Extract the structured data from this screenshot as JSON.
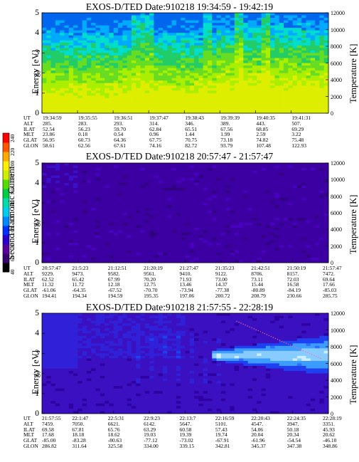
{
  "colorbar": {
    "label": "Second Harmonic Current",
    "ticks": [
      "40",
      "60",
      "80",
      "100",
      "120",
      "140",
      "160",
      "180",
      "200",
      "220",
      "240"
    ]
  },
  "chart_data": [
    {
      "type": "heatmap",
      "title": "EXOS-D/TED   Date:910218  19:34:59 - 19:42:19",
      "ylabel": "Energy [eV]",
      "y2label": "Temperature [K]",
      "ylim": [
        0,
        5
      ],
      "y2lim": [
        0,
        12000
      ],
      "yticks": [
        "0",
        "1",
        "2",
        "3",
        "4",
        "5"
      ],
      "y2ticks": [
        "0",
        "2000",
        "4000",
        "6000",
        "8000",
        "10000",
        "12000"
      ],
      "rows": [
        {
          "name": "UT",
          "values": [
            "19:34:59",
            "19:35:55",
            "19:36:51",
            "19:37:47",
            "19:38:43",
            "19:39:39",
            "19:40:35",
            "19:41:31"
          ]
        },
        {
          "name": "ALT",
          "values": [
            "285.",
            "283.",
            "293.",
            "314.",
            "346.",
            "389.",
            "443.",
            "507."
          ]
        },
        {
          "name": "ILAT",
          "values": [
            "52.54",
            "56.23",
            "59.70",
            "62.84",
            "65.51",
            "67.56",
            "68.85",
            "69.29"
          ]
        },
        {
          "name": "MLT",
          "values": [
            "23.86",
            "0.18",
            "0.54",
            "0.96",
            "1.44",
            "1.99",
            "2.59",
            "3.22"
          ]
        },
        {
          "name": "GLAT",
          "values": [
            "56.95",
            "60.73",
            "64.36",
            "67.75",
            "70.75",
            "73.18",
            "74.82",
            "75.48"
          ]
        },
        {
          "name": "GLON",
          "values": [
            "58.61",
            "62.56",
            "67.61",
            "74.16",
            "82.72",
            "93.79",
            "107.48",
            "122.93"
          ]
        }
      ]
    },
    {
      "type": "heatmap",
      "title": "EXOS-D/TED   Date:910218  20:57:47 - 21:57:47",
      "ylabel": "Energy [eV]",
      "y2label": "Temperature [K]",
      "ylim": [
        0,
        5
      ],
      "y2lim": [
        0,
        12000
      ],
      "yticks": [
        "0",
        "1",
        "2",
        "3",
        "4",
        "5"
      ],
      "y2ticks": [
        "0",
        "2000",
        "4000",
        "6000",
        "8000",
        "10000",
        "12000"
      ],
      "rows": [
        {
          "name": "UT",
          "values": [
            "20:57:47",
            "21:5:23",
            "21:12:51",
            "21:20:19",
            "21:27:47",
            "21:35:23",
            "21:42:51",
            "21:50:19",
            "21:57:47"
          ]
        },
        {
          "name": "ALT",
          "values": [
            "9229.",
            "9473.",
            "9582.",
            "9561.",
            "9410.",
            "9122.",
            "8706.",
            "8157.",
            "7472."
          ]
        },
        {
          "name": "ILAT",
          "values": [
            "62.52",
            "65.42",
            "67.99",
            "70.20",
            "71.93",
            "73.00",
            "73.11",
            "72.03",
            "69.64"
          ]
        },
        {
          "name": "MLT",
          "values": [
            "11.32",
            "11.72",
            "12.18",
            "12.75",
            "13.46",
            "14.37",
            "15.44",
            "16.58",
            "17.66"
          ]
        },
        {
          "name": "GLAT",
          "values": [
            "-61.06",
            "-64.35",
            "-67.52",
            "-70.70",
            "-73.94",
            "-77.38",
            "-80.89",
            "-84.19",
            "-85.03"
          ]
        },
        {
          "name": "GLON",
          "values": [
            "194.41",
            "194.34",
            "194.59",
            "195.35",
            "197.06",
            "200.72",
            "208.79",
            "230.66",
            "285.75"
          ]
        }
      ]
    },
    {
      "type": "heatmap",
      "title": "EXOS-D/TED   Date:910218  21:57:55 - 22:28:19",
      "ylabel": "Energy [eV]",
      "y2label": "Temperature [K]",
      "ylim": [
        0,
        5
      ],
      "y2lim": [
        0,
        12000
      ],
      "yticks": [
        "0",
        "1",
        "2",
        "3",
        "4",
        "5"
      ],
      "y2ticks": [
        "0",
        "2000",
        "4000",
        "6000",
        "8000",
        "10000",
        "12000"
      ],
      "rows": [
        {
          "name": "UT",
          "values": [
            "21:57:55",
            "22:1:47",
            "22:5:31",
            "22:9:23",
            "22:13:7",
            "22:16:59",
            "22:20:43",
            "22:24:35",
            "22:28:19"
          ]
        },
        {
          "name": "ALT",
          "values": [
            "7459.",
            "7050.",
            "6621.",
            "6142.",
            "5647.",
            "5101.",
            "4547.",
            "3947.",
            "3351."
          ]
        },
        {
          "name": "ILAT",
          "values": [
            "69.58",
            "67.81",
            "65.76",
            "63.29",
            "60.58",
            "57.43",
            "54.06",
            "50.18",
            "45.93"
          ]
        },
        {
          "name": "MLT",
          "values": [
            "17.68",
            "18.18",
            "18.62",
            "19.03",
            "19.39",
            "19.74",
            "20.04",
            "20.34",
            "20.62"
          ]
        },
        {
          "name": "GLAT",
          "values": [
            "-85.00",
            "-83.28",
            "-80.63",
            "-77.12",
            "-73.02",
            "-67.91",
            "-61.96",
            "-54.54",
            "-46.10"
          ]
        },
        {
          "name": "GLON",
          "values": [
            "286.82",
            "311.64",
            "325.58",
            "334.00",
            "339.15",
            "342.81",
            "345.37",
            "347.38",
            "348.86"
          ]
        }
      ]
    }
  ]
}
